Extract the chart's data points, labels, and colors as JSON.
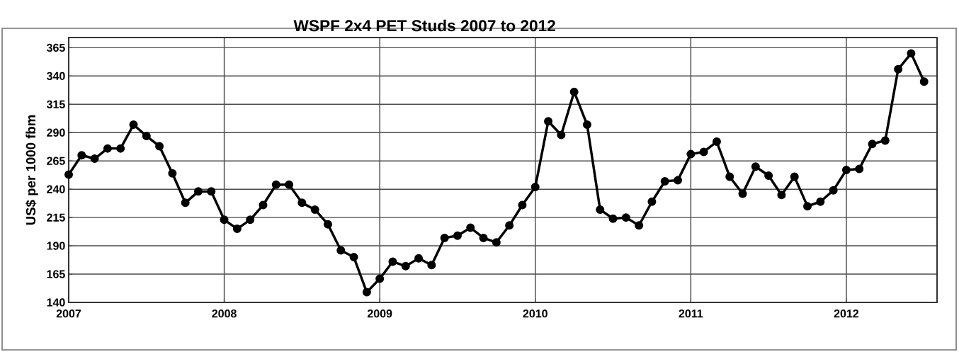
{
  "chart_data": {
    "type": "line",
    "title": "WSPF 2x4 PET Studs 2007 to 2012",
    "ylabel": "US$ per 1000 fbm",
    "x": [
      "2007-01",
      "2007-02",
      "2007-03",
      "2007-04",
      "2007-05",
      "2007-06",
      "2007-07",
      "2007-08",
      "2007-09",
      "2007-10",
      "2007-11",
      "2007-12",
      "2008-01",
      "2008-02",
      "2008-03",
      "2008-04",
      "2008-05",
      "2008-06",
      "2008-07",
      "2008-08",
      "2008-09",
      "2008-10",
      "2008-11",
      "2008-12",
      "2009-01",
      "2009-02",
      "2009-03",
      "2009-04",
      "2009-05",
      "2009-06",
      "2009-07",
      "2009-08",
      "2009-09",
      "2009-10",
      "2009-11",
      "2009-12",
      "2010-01",
      "2010-02",
      "2010-03",
      "2010-04",
      "2010-05",
      "2010-06",
      "2010-07",
      "2010-08",
      "2010-09",
      "2010-10",
      "2010-11",
      "2010-12",
      "2011-01",
      "2011-02",
      "2011-03",
      "2011-04",
      "2011-05",
      "2011-06",
      "2011-07",
      "2011-08",
      "2011-09",
      "2011-10",
      "2011-11",
      "2011-12",
      "2012-01",
      "2012-02",
      "2012-03",
      "2012-04",
      "2012-05",
      "2012-06",
      "2012-07"
    ],
    "series": [
      {
        "color": "#000000",
        "values": [
          253,
          270,
          267,
          276,
          276,
          297,
          287,
          278,
          254,
          228,
          238,
          238,
          213,
          205,
          213,
          226,
          244,
          244,
          228,
          222,
          209,
          186,
          180,
          149,
          161,
          176,
          172,
          179,
          173,
          197,
          199,
          206,
          197,
          193,
          208,
          226,
          242,
          300,
          288,
          326,
          297,
          222,
          214,
          215,
          208,
          229,
          247,
          248,
          271,
          273,
          282,
          251,
          236,
          260,
          252,
          235,
          251,
          225,
          229,
          239,
          257,
          258,
          280,
          283,
          346,
          360,
          335
        ]
      }
    ],
    "xlim": [
      "2007-01",
      "2012-08"
    ],
    "xticks": [
      "2007",
      "2008",
      "2009",
      "2010",
      "2011",
      "2012"
    ],
    "ylim": [
      140,
      374
    ],
    "yticks": [
      140,
      165,
      190,
      215,
      240,
      265,
      290,
      315,
      340,
      365
    ],
    "grid": true,
    "marker": "circle",
    "line_style": "solid"
  }
}
